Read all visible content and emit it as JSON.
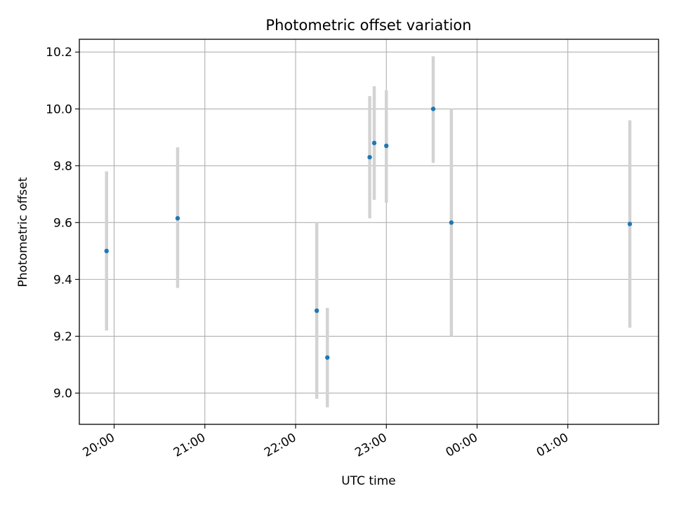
{
  "chart_data": {
    "type": "scatter",
    "title": "Photometric offset variation",
    "xlabel": "UTC time",
    "ylabel": "Photometric offset",
    "x_axis_kind": "time",
    "xlim": [
      "19:37",
      "02:00"
    ],
    "ylim": [
      8.89,
      10.245
    ],
    "grid": true,
    "x_ticks": [
      "20:00",
      "21:00",
      "22:00",
      "23:00",
      "00:00",
      "01:00"
    ],
    "y_ticks": [
      "9.0",
      "9.2",
      "9.4",
      "9.6",
      "9.8",
      "10.0",
      "10.2"
    ],
    "series": [
      {
        "color": "#1f77b4",
        "errorbar_color": "#d3d3d3",
        "points": [
          {
            "time": "19:55",
            "y": 9.5,
            "ylow": 9.22,
            "yhigh": 9.78
          },
          {
            "time": "20:42",
            "y": 9.615,
            "ylow": 9.37,
            "yhigh": 9.865
          },
          {
            "time": "22:14",
            "y": 9.29,
            "ylow": 8.98,
            "yhigh": 9.6
          },
          {
            "time": "22:21",
            "y": 9.125,
            "ylow": 8.95,
            "yhigh": 9.3
          },
          {
            "time": "22:49",
            "y": 9.83,
            "ylow": 9.615,
            "yhigh": 10.045
          },
          {
            "time": "22:52",
            "y": 9.88,
            "ylow": 9.68,
            "yhigh": 10.08
          },
          {
            "time": "23:00",
            "y": 9.87,
            "ylow": 9.67,
            "yhigh": 10.065
          },
          {
            "time": "23:31",
            "y": 10.0,
            "ylow": 9.81,
            "yhigh": 10.185
          },
          {
            "time": "23:43",
            "y": 9.6,
            "ylow": 9.2,
            "yhigh": 10.0
          },
          {
            "time": "01:41",
            "y": 9.595,
            "ylow": 9.23,
            "yhigh": 9.96
          }
        ]
      }
    ]
  }
}
